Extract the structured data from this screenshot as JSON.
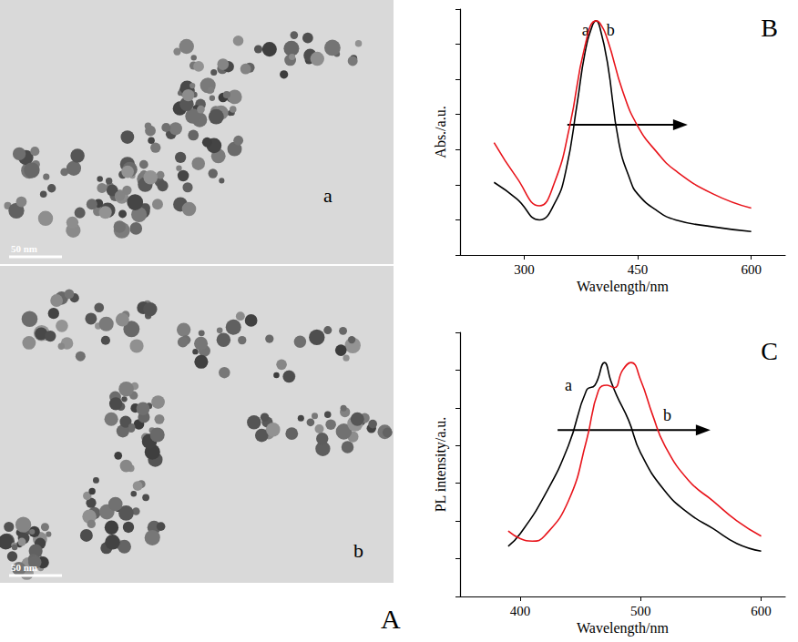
{
  "images": {
    "label": "A",
    "panels": [
      {
        "label": "a",
        "scale_bar": "50 nm"
      },
      {
        "label": "b",
        "scale_bar": "50 nm"
      }
    ]
  },
  "chart_data": [
    {
      "type": "line",
      "label": "B",
      "x_label": "Wavelength/nm",
      "y_label": "Abs./a.u.",
      "xlim": [
        215,
        645
      ],
      "xticks": [
        300,
        450,
        600
      ],
      "ylim": [
        0,
        1.05
      ],
      "yticks": [
        0,
        0.15,
        0.3,
        0.45,
        0.6,
        0.75,
        0.9,
        1.05
      ],
      "tick_labels": "x",
      "grid": false,
      "series": [
        {
          "name": "a",
          "color": "#000000",
          "label_xy": [
            381,
            0.96
          ],
          "x": [
            260,
            290,
            320,
            340,
            355,
            370,
            380,
            390,
            395,
            400,
            410,
            425,
            440,
            450,
            475,
            500,
            550,
            600
          ],
          "values": [
            0.31,
            0.24,
            0.15,
            0.22,
            0.36,
            0.65,
            0.86,
            0.98,
            1.0,
            0.97,
            0.82,
            0.48,
            0.32,
            0.26,
            0.19,
            0.15,
            0.12,
            0.1
          ]
        },
        {
          "name": "b",
          "color": "#e8141b",
          "label_xy": [
            414,
            0.96
          ],
          "x": [
            260,
            290,
            320,
            340,
            360,
            380,
            395,
            400,
            410,
            430,
            450,
            475,
            500,
            550,
            600
          ],
          "values": [
            0.48,
            0.33,
            0.21,
            0.31,
            0.55,
            0.89,
            1.0,
            0.99,
            0.92,
            0.7,
            0.55,
            0.44,
            0.36,
            0.26,
            0.2
          ]
        }
      ]
    },
    {
      "type": "line",
      "label": "C",
      "x_label": "Wavelength/nm",
      "y_label": "PL intensity/a.u.",
      "xlim": [
        350,
        620
      ],
      "xticks": [
        400,
        500,
        600
      ],
      "ylim": [
        0,
        1.05
      ],
      "yticks": [
        0,
        0.15,
        0.3,
        0.45,
        0.6,
        0.75,
        0.9,
        1.05
      ],
      "tick_labels": "x",
      "grid": false,
      "series": [
        {
          "name": "a",
          "color": "#000000",
          "label_xy": [
            440,
            0.84
          ],
          "x": [
            390,
            400,
            420,
            440,
            455,
            462,
            470,
            475,
            480,
            490,
            500,
            520,
            540,
            560,
            580,
            600
          ],
          "values": [
            0.2,
            0.25,
            0.4,
            0.6,
            0.82,
            0.84,
            0.93,
            0.86,
            0.8,
            0.7,
            0.57,
            0.42,
            0.33,
            0.27,
            0.21,
            0.18
          ]
        },
        {
          "name": "b",
          "color": "#e8141b",
          "label_xy": [
            522,
            0.72
          ],
          "x": [
            390,
            400,
            410,
            420,
            440,
            455,
            465,
            472,
            478,
            485,
            492,
            500,
            510,
            520,
            540,
            560,
            580,
            600
          ],
          "values": [
            0.26,
            0.23,
            0.22,
            0.24,
            0.38,
            0.62,
            0.82,
            0.84,
            0.83,
            0.9,
            0.93,
            0.86,
            0.72,
            0.6,
            0.46,
            0.38,
            0.3,
            0.24
          ]
        }
      ]
    }
  ]
}
